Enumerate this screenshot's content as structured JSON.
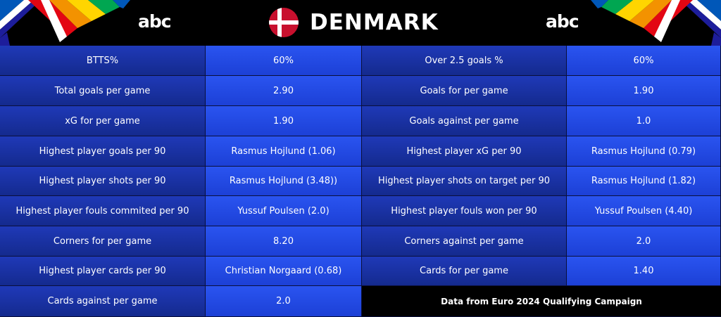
{
  "header": {
    "brand_left": "abc",
    "brand_right": "abc",
    "title": "DENMARK",
    "flag_icon": "denmark-flag-icon",
    "flag_colors": {
      "red": "#c8102e",
      "white": "#ffffff"
    },
    "deco_colors": [
      "#e30613",
      "#f39200",
      "#ffd500",
      "#00a651",
      "#0057b8",
      "#ffffff",
      "#1d1d9b"
    ]
  },
  "left_table": [
    {
      "label": "BTTS%",
      "value": "60%"
    },
    {
      "label": "Total goals per game",
      "value": "2.90"
    },
    {
      "label": "xG for per game",
      "value": "1.90"
    },
    {
      "label": "Highest player goals per 90",
      "value": "Rasmus Hojlund (1.06)"
    },
    {
      "label": "Highest player shots per 90",
      "value": "Rasmus Hojlund (3.48))"
    },
    {
      "label": "Highest player fouls commited per 90",
      "value": "Yussuf Poulsen (2.0)"
    },
    {
      "label": "Corners for per game",
      "value": "8.20"
    },
    {
      "label": "Highest player cards per 90",
      "value": "Christian Norgaard (0.68)"
    },
    {
      "label": "Cards against per game",
      "value": "2.0"
    }
  ],
  "right_table": [
    {
      "label": "Over 2.5 goals %",
      "value": "60%"
    },
    {
      "label": "Goals for per game",
      "value": "1.90"
    },
    {
      "label": "Goals against per game",
      "value": "1.0"
    },
    {
      "label": "Highest player xG per 90",
      "value": "Rasmus Hojlund (0.79)"
    },
    {
      "label": "Highest player shots on target per 90",
      "value": "Rasmus Hojlund (1.82)"
    },
    {
      "label": "Highest player fouls won per 90",
      "value": "Yussuf Poulsen (4.40)"
    },
    {
      "label": "Corners against per game",
      "value": "2.0"
    },
    {
      "label": "Cards for per game",
      "value": "1.40"
    }
  ],
  "footer_note": "Data from Euro 2024 Qualifying Campaign"
}
